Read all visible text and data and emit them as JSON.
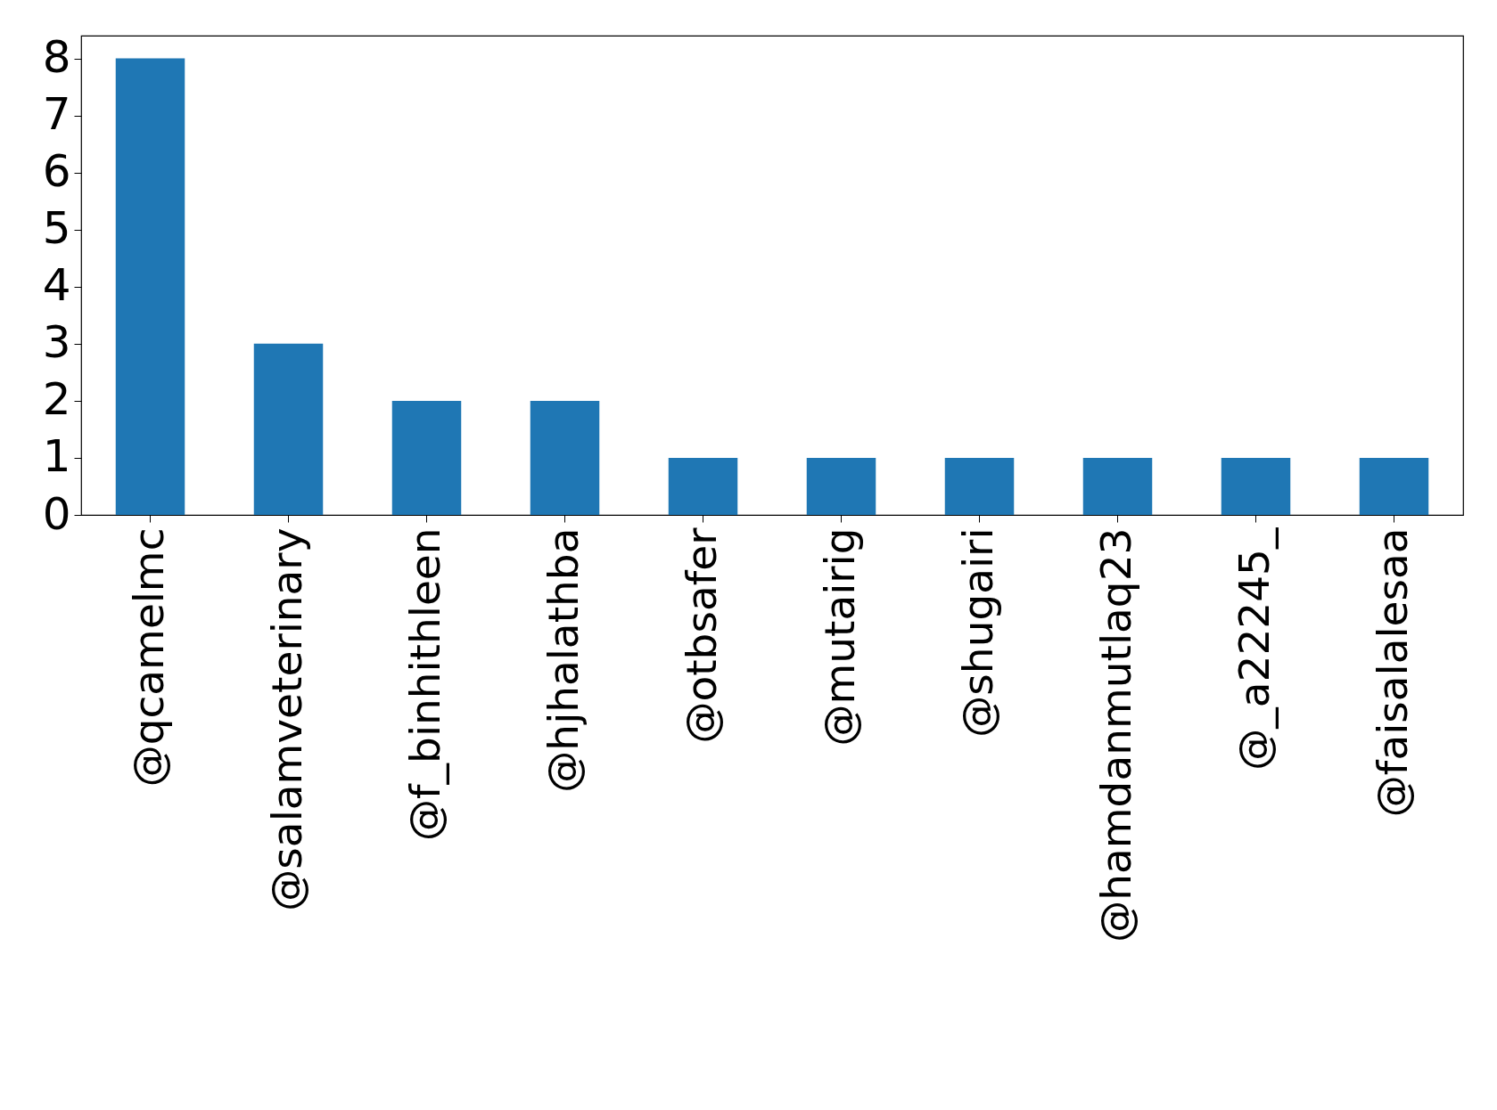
{
  "chart_data": {
    "type": "bar",
    "categories": [
      "@qcamelmc",
      "@salamveterinary",
      "@f_binhithleen",
      "@hjhalathba",
      "@otbsafer",
      "@mutairig",
      "@shugairi",
      "@hamdanmutlaq23",
      "@_a22245_",
      "@faisalalesaa"
    ],
    "values": [
      8,
      3,
      2,
      2,
      1,
      1,
      1,
      1,
      1,
      1
    ],
    "color": "#1f77b4",
    "ylim": [
      0,
      8.4
    ],
    "yticks": [
      0,
      1,
      2,
      3,
      4,
      5,
      6,
      7,
      8
    ],
    "grid": false
  }
}
